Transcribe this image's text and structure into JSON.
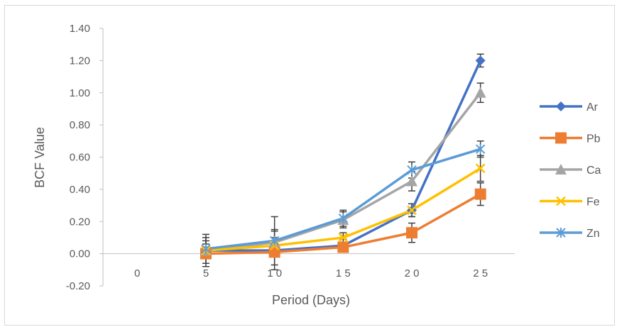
{
  "chart_data": {
    "type": "line",
    "title": "",
    "xlabel": "Period (Days)",
    "ylabel": "BCF Value",
    "x": [
      0,
      5,
      10,
      15,
      20,
      25
    ],
    "x_tick_labels": [
      "0",
      "5",
      "1 0",
      "1 5",
      "2 0",
      "2 5"
    ],
    "ylim": [
      -0.2,
      1.4
    ],
    "y_tick_labels": [
      "-0.20",
      "0.00",
      "0.20",
      "0.40",
      "0.60",
      "0.80",
      "1.00",
      "1.20",
      "1.40"
    ],
    "grid": false,
    "legend_position": "right",
    "series": [
      {
        "name": "Ar",
        "color": "#4472c4",
        "marker": "diamond",
        "x": [
          5,
          10,
          15,
          20,
          25
        ],
        "values": [
          0.02,
          0.02,
          0.05,
          0.27,
          1.2
        ],
        "err": [
          0.1,
          0.12,
          0.04,
          0.04,
          0.04
        ]
      },
      {
        "name": "Pb",
        "color": "#ed7d31",
        "marker": "square",
        "x": [
          5,
          10,
          15,
          20,
          25
        ],
        "values": [
          0.0,
          0.01,
          0.04,
          0.13,
          0.37
        ],
        "err": [
          0.02,
          0.02,
          0.02,
          0.06,
          0.07
        ]
      },
      {
        "name": "Ca",
        "color": "#a5a5a5",
        "marker": "triangle",
        "x": [
          5,
          10,
          15,
          20,
          25
        ],
        "values": [
          0.02,
          0.07,
          0.21,
          0.45,
          1.0
        ],
        "err": [
          0.08,
          0.08,
          0.05,
          0.06,
          0.06
        ]
      },
      {
        "name": "Fe",
        "color": "#ffc000",
        "marker": "x",
        "x": [
          5,
          10,
          15,
          20,
          25
        ],
        "values": [
          0.02,
          0.05,
          0.1,
          0.27,
          0.53
        ],
        "err": [
          0.04,
          0.05,
          0.03,
          0.04,
          0.08
        ]
      },
      {
        "name": "Zn",
        "color": "#5b9bd5",
        "marker": "star",
        "x": [
          5,
          10,
          15,
          20,
          25
        ],
        "values": [
          0.03,
          0.08,
          0.22,
          0.52,
          0.65
        ],
        "err": [
          0.05,
          0.15,
          0.05,
          0.05,
          0.05
        ]
      }
    ]
  }
}
